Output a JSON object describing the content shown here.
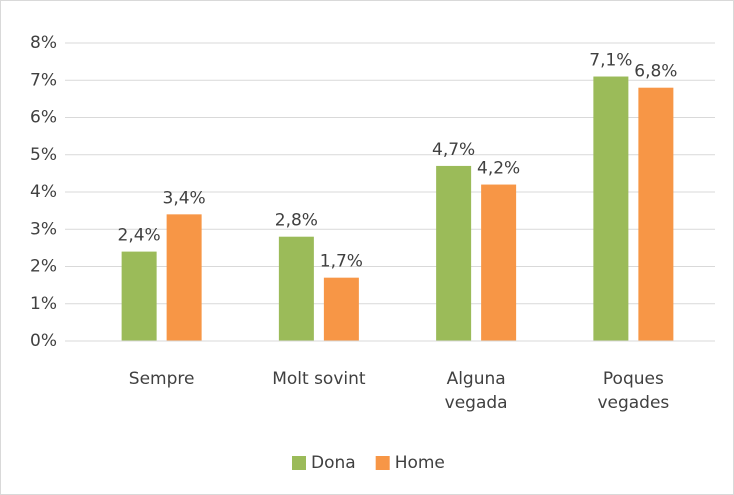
{
  "chart_data": {
    "type": "bar",
    "categories": [
      "Sempre",
      "Molt sovint",
      "Alguna vegada",
      "Poques vegades"
    ],
    "series": [
      {
        "name": "Dona",
        "color": "#9bbb59",
        "values": [
          2.4,
          2.8,
          4.7,
          7.1
        ],
        "value_labels": [
          "2,4%",
          "2,8%",
          "4,7%",
          "7,1%"
        ]
      },
      {
        "name": "Home",
        "color": "#f79646",
        "values": [
          3.4,
          1.7,
          4.2,
          6.8
        ],
        "value_labels": [
          "3,4%",
          "1,7%",
          "4,2%",
          "6,8%"
        ]
      }
    ],
    "ylim": [
      0,
      8
    ],
    "yticks": [
      {
        "value": 0,
        "label": "0%"
      },
      {
        "value": 1,
        "label": "1%"
      },
      {
        "value": 2,
        "label": "2%"
      },
      {
        "value": 3,
        "label": "3%"
      },
      {
        "value": 4,
        "label": "4%"
      },
      {
        "value": 5,
        "label": "5%"
      },
      {
        "value": 6,
        "label": "6%"
      },
      {
        "value": 7,
        "label": "7%"
      },
      {
        "value": 8,
        "label": "8%"
      }
    ],
    "grid": true,
    "legend": "bottom"
  }
}
